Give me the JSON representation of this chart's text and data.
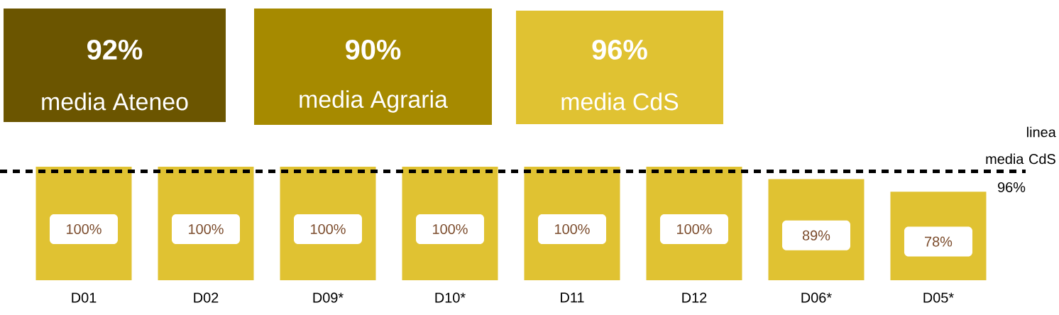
{
  "chart_data": {
    "type": "bar",
    "categories": [
      "D01",
      "D02",
      "D09*",
      "D10*",
      "D11",
      "D12",
      "D06*",
      "D05*"
    ],
    "values": [
      100,
      100,
      100,
      100,
      100,
      100,
      89,
      78
    ],
    "value_labels": [
      "100%",
      "100%",
      "100%",
      "100%",
      "100%",
      "100%",
      "89%",
      "78%"
    ],
    "color": "#e0c232",
    "ref_lines": [
      {
        "axis": "y",
        "value": 96,
        "label": "linea media CdS",
        "color": "#000000",
        "line_style": "dashed"
      }
    ],
    "annotations": [
      "92%",
      "media Ateneo",
      "90%",
      "media Agraria",
      "96%",
      "media CdS",
      {
        "text": "96%",
        "y": 96
      }
    ]
  }
}
